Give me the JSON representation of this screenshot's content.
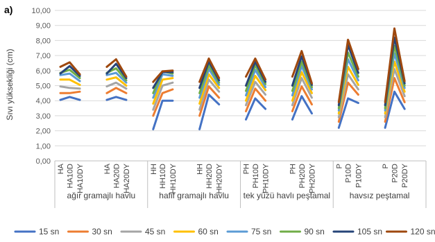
{
  "chart_data": {
    "type": "line",
    "panel_label": "a)",
    "ylabel": "Sıvı yüksekliği (cm)",
    "ylim": [
      0,
      10
    ],
    "y_ticks": [
      "0,00",
      "1,00",
      "2,00",
      "3,00",
      "4,00",
      "5,00",
      "6,00",
      "7,00",
      "8,00",
      "9,00",
      "10,00"
    ],
    "gridlines": true,
    "legend_position": "bottom",
    "groups": [
      {
        "name": "ağır gramajlı havlu",
        "segments": [
          [
            "HA",
            "HA10D",
            "HA10DY"
          ],
          [
            "HA",
            "HA20D",
            "HA20DY"
          ]
        ]
      },
      {
        "name": "hafif gramajlı havlu",
        "segments": [
          [
            "HH",
            "HH10D",
            "HH10DY"
          ],
          [
            "HH",
            "HH20D",
            "HH20DY"
          ]
        ]
      },
      {
        "name": "tek yüzü havlı peştamal",
        "segments": [
          [
            "PH",
            "PH10D",
            "PH10DY"
          ],
          [
            "PH",
            "PH20D",
            "PH20DY"
          ]
        ]
      },
      {
        "name": "havsız peştamal",
        "segments": [
          [
            "P",
            "P10D",
            "P10DY"
          ],
          [
            "P",
            "P20D",
            "P20DY"
          ]
        ]
      }
    ],
    "series": [
      {
        "name": "15 sn",
        "color": "#4472C4",
        "values": [
          [
            4.05,
            4.25,
            4.05
          ],
          [
            4.05,
            4.25,
            4.05
          ],
          [
            2.1,
            4.0,
            4.0
          ],
          [
            2.1,
            4.4,
            3.75
          ],
          [
            2.75,
            4.15,
            3.45
          ],
          [
            2.75,
            4.3,
            3.15
          ],
          [
            2.2,
            4.15,
            3.85
          ],
          [
            2.2,
            4.6,
            3.45
          ]
        ]
      },
      {
        "name": "30 sn",
        "color": "#ED7D31",
        "values": [
          [
            4.5,
            4.5,
            4.6
          ],
          [
            4.5,
            4.85,
            4.5
          ],
          [
            3.0,
            4.5,
            4.75
          ],
          [
            3.0,
            4.95,
            4.2
          ],
          [
            3.3,
            4.8,
            4.0
          ],
          [
            3.3,
            4.95,
            3.75
          ],
          [
            2.6,
            5.2,
            4.4
          ],
          [
            2.6,
            5.5,
            3.9
          ]
        ]
      },
      {
        "name": "45 sn",
        "color": "#A5A5A5",
        "values": [
          [
            4.95,
            4.85,
            4.8
          ],
          [
            4.95,
            5.2,
            4.8
          ],
          [
            3.4,
            5.0,
            5.2
          ],
          [
            3.4,
            5.4,
            4.6
          ],
          [
            3.7,
            5.25,
            4.4
          ],
          [
            3.7,
            5.5,
            4.2
          ],
          [
            2.9,
            5.75,
            4.75
          ],
          [
            2.9,
            6.1,
            4.3
          ]
        ]
      },
      {
        "name": "60 sn",
        "color": "#FFC000",
        "values": [
          [
            5.4,
            5.4,
            5.05
          ],
          [
            5.4,
            5.55,
            5.0
          ],
          [
            3.8,
            5.4,
            5.5
          ],
          [
            3.8,
            5.75,
            4.85
          ],
          [
            4.0,
            5.65,
            4.7
          ],
          [
            4.0,
            5.9,
            4.5
          ],
          [
            3.15,
            6.25,
            5.05
          ],
          [
            3.15,
            6.6,
            4.6
          ]
        ]
      },
      {
        "name": "75 sn",
        "color": "#5B9BD5",
        "values": [
          [
            5.7,
            5.8,
            5.3
          ],
          [
            5.7,
            5.85,
            5.2
          ],
          [
            4.2,
            5.75,
            5.65
          ],
          [
            4.2,
            6.1,
            5.05
          ],
          [
            4.35,
            6.05,
            4.9
          ],
          [
            4.35,
            6.3,
            4.75
          ],
          [
            3.35,
            6.75,
            5.35
          ],
          [
            3.35,
            7.15,
            4.85
          ]
        ]
      },
      {
        "name": "90 sn",
        "color": "#70AD47",
        "values": [
          [
            5.85,
            6.05,
            5.5
          ],
          [
            5.85,
            6.15,
            5.35
          ],
          [
            4.5,
            5.95,
            5.8
          ],
          [
            4.5,
            6.35,
            5.2
          ],
          [
            4.65,
            6.35,
            5.1
          ],
          [
            4.65,
            6.6,
            4.9
          ],
          [
            3.5,
            7.2,
            5.6
          ],
          [
            3.5,
            7.65,
            5.0
          ]
        ]
      },
      {
        "name": "105 sn",
        "color": "#264478",
        "values": [
          [
            5.8,
            6.3,
            5.65
          ],
          [
            5.8,
            6.45,
            5.5
          ],
          [
            4.85,
            5.9,
            5.9
          ],
          [
            4.85,
            6.6,
            5.35
          ],
          [
            5.0,
            6.6,
            5.25
          ],
          [
            5.0,
            6.95,
            5.05
          ],
          [
            3.7,
            7.7,
            5.85
          ],
          [
            3.7,
            8.2,
            5.15
          ]
        ]
      },
      {
        "name": "120 sn",
        "color": "#9E480E",
        "values": [
          [
            6.25,
            6.55,
            5.75
          ],
          [
            6.25,
            6.75,
            5.6
          ],
          [
            5.25,
            5.95,
            6.0
          ],
          [
            5.25,
            6.8,
            5.5
          ],
          [
            5.6,
            6.8,
            5.4
          ],
          [
            5.6,
            7.3,
            5.15
          ],
          [
            3.9,
            8.05,
            6.1
          ],
          [
            3.9,
            8.8,
            5.3
          ]
        ]
      }
    ]
  }
}
